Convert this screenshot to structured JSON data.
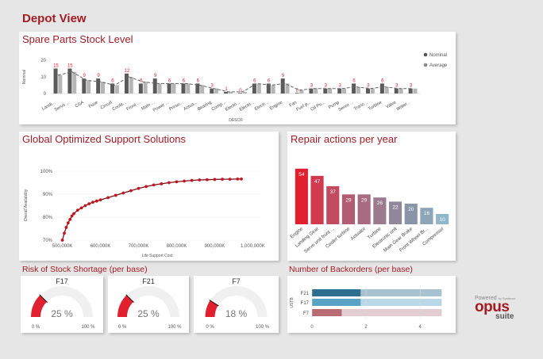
{
  "page_title": "Depot View",
  "colors": {
    "accent": "#a31c24",
    "bar_red": "#e0202e",
    "bar_dark": "#555555",
    "bar_light": "#b5b5b5",
    "gray_track": "#f0f0f0"
  },
  "stock_level": {
    "title": "Spare Parts Stock Level",
    "y_label": "Nominal",
    "x_label": "DESCR",
    "legend": [
      "Nominal",
      "Average"
    ],
    "y_ticks": [
      "20",
      "10",
      "0"
    ]
  },
  "support": {
    "title": "Global Optimized Support Solutions",
    "x_label": "Life Support Cost",
    "y_label": "Overall Availability"
  },
  "repair": {
    "title": "Repair actions per year"
  },
  "risk": {
    "title": "Risk of Stock Shortage (per base)"
  },
  "backorders": {
    "title": "Number of Backorders (per base)",
    "y_label": "USTB"
  },
  "chart_data": [
    {
      "type": "bar",
      "title": "Spare Parts Stock Level",
      "xlabel": "DESCR",
      "ylabel": "Nominal",
      "ylim": [
        0,
        20
      ],
      "legend_position": "top-right",
      "categories": [
        "Landi...",
        "Servo ...",
        "CSA",
        "Fuse",
        "Circuit",
        "Coole...",
        "Front ...",
        "Main ...",
        "Power ...",
        "Presu...",
        "Actua...",
        "Bearing",
        "Comp...",
        "Electri...",
        "Electri...",
        "Electr...",
        "Engine",
        "Fan",
        "Fuel p...",
        "Oil Pu...",
        "Pump",
        "Servo ...",
        "Tranc...",
        "Turbine",
        "Valve",
        "Water..."
      ],
      "series": [
        {
          "name": "Nominal",
          "values": [
            15,
            15,
            9,
            9,
            6,
            12,
            6,
            9,
            6,
            6,
            6,
            3,
            1,
            0,
            6,
            6,
            9,
            0,
            3,
            3,
            3,
            6,
            3,
            6,
            3,
            3
          ]
        },
        {
          "name": "Average",
          "values": [
            11,
            13,
            8,
            7,
            5,
            10,
            7,
            6,
            6,
            6,
            5,
            3,
            1,
            1,
            6,
            5,
            6,
            2,
            3,
            3,
            3,
            4,
            3,
            4,
            3,
            3
          ]
        }
      ]
    },
    {
      "type": "scatter",
      "title": "Global Optimized Support Solutions",
      "xlabel": "Life Support Cost",
      "ylabel": "Overall Availability",
      "x_ticks": [
        "500,000K",
        "600,000K",
        "700,000K",
        "800,000K",
        "900,000K",
        "1,000,000K"
      ],
      "y_ticks": [
        "100%",
        "90%",
        "80%",
        "70%"
      ],
      "xlim": [
        480,
        1020
      ],
      "ylim": [
        70,
        100
      ],
      "x": [
        500,
        505,
        510,
        515,
        520,
        525,
        530,
        540,
        550,
        560,
        570,
        580,
        590,
        600,
        620,
        640,
        660,
        680,
        700,
        720,
        740,
        760,
        780,
        800,
        820,
        840,
        860,
        880,
        900,
        920,
        940,
        960,
        970
      ],
      "y": [
        70,
        73,
        75.5,
        77.5,
        79,
        80.5,
        81.5,
        83,
        84,
        85,
        85.8,
        86.5,
        87,
        87.5,
        88.5,
        89.5,
        90.5,
        91.5,
        92.5,
        93.3,
        94,
        94.5,
        95,
        95.4,
        95.7,
        96,
        96.2,
        96.3,
        96.4,
        96.5,
        96.5,
        96.6,
        96.6
      ]
    },
    {
      "type": "bar",
      "title": "Repair actions per year",
      "categories": [
        "Engine",
        "Landing Gear",
        "Servo unit front ...",
        "Cooler turbine",
        "Actuator",
        "Turbine",
        "Electronic unit",
        "Main Gear Brake",
        "Front Wheel Br...",
        "Compressor"
      ],
      "values": [
        54,
        47,
        37,
        29,
        29,
        26,
        22,
        20,
        16,
        10
      ],
      "ylim": [
        0,
        60
      ]
    },
    {
      "type": "gauge",
      "title": "Risk of Stock Shortage (per base)",
      "gauges": [
        {
          "name": "F17",
          "value": "25 %",
          "fraction": 0.25,
          "min": "0 %",
          "max": "100 %"
        },
        {
          "name": "F21",
          "value": "25 %",
          "fraction": 0.25,
          "min": "0 %",
          "max": "100 %"
        },
        {
          "name": "F7",
          "value": "18 %",
          "fraction": 0.18,
          "min": "0 %",
          "max": "100 %"
        }
      ]
    },
    {
      "type": "bar",
      "title": "Number of Backorders (per base)",
      "ylabel": "USTB",
      "categories": [
        "F21",
        "F17",
        "F7"
      ],
      "values": [
        1.8,
        1.8,
        1.1
      ],
      "totals": [
        4.8,
        4.8,
        4.8
      ],
      "x_ticks": [
        "0",
        "2",
        "4"
      ],
      "xlim": [
        0,
        5.2
      ]
    }
  ],
  "logo": {
    "powered": "Powered",
    "by": "by Systecon",
    "brand": "opus",
    "suite": "suite"
  }
}
